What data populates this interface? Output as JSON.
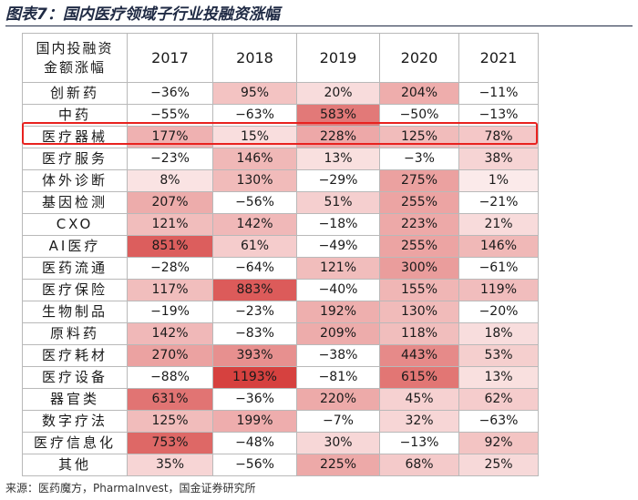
{
  "title": "图表7：国内医疗领域子行业投融资涨幅",
  "source": "来源：医药魔方，PharmaInvest，国金证券研究所",
  "colors": {
    "highlight_border": "#e8221f",
    "heat_high": "#d6413f",
    "heat_low": "#fbe9e9",
    "grid": "#b9b9b9"
  },
  "chart_data": {
    "type": "heatmap",
    "title": "图表7：国内医疗领域子行业投融资涨幅",
    "row_header": "国内投融资\n金额涨幅",
    "columns": [
      "2017",
      "2018",
      "2019",
      "2020",
      "2021"
    ],
    "rows": [
      {
        "label": "创新药",
        "values": [
          -36,
          95,
          20,
          204,
          -11
        ]
      },
      {
        "label": "中药",
        "values": [
          -55,
          -63,
          583,
          -50,
          -13
        ]
      },
      {
        "label": "医疗器械",
        "values": [
          177,
          15,
          228,
          125,
          78
        ],
        "highlighted": true
      },
      {
        "label": "医疗服务",
        "values": [
          -23,
          146,
          13,
          -3,
          38
        ]
      },
      {
        "label": "体外诊断",
        "values": [
          8,
          130,
          -29,
          275,
          1
        ]
      },
      {
        "label": "基因检测",
        "values": [
          207,
          -56,
          51,
          255,
          -21
        ]
      },
      {
        "label": "CXO",
        "values": [
          121,
          142,
          -18,
          223,
          21
        ]
      },
      {
        "label": "AI医疗",
        "values": [
          851,
          61,
          -49,
          255,
          146
        ]
      },
      {
        "label": "医药流通",
        "values": [
          -28,
          -64,
          121,
          300,
          -61
        ]
      },
      {
        "label": "医疗保险",
        "values": [
          117,
          883,
          -40,
          155,
          119
        ]
      },
      {
        "label": "生物制品",
        "values": [
          -19,
          -23,
          192,
          130,
          -20
        ]
      },
      {
        "label": "原料药",
        "values": [
          142,
          -83,
          209,
          118,
          18
        ]
      },
      {
        "label": "医疗耗材",
        "values": [
          270,
          393,
          -38,
          443,
          53
        ]
      },
      {
        "label": "医疗设备",
        "values": [
          -88,
          1193,
          -81,
          615,
          13
        ]
      },
      {
        "label": "器官类",
        "values": [
          631,
          -36,
          220,
          45,
          62
        ]
      },
      {
        "label": "数字疗法",
        "values": [
          125,
          199,
          -7,
          32,
          -63
        ]
      },
      {
        "label": "医疗信息化",
        "values": [
          753,
          -48,
          30,
          -13,
          92
        ]
      },
      {
        "label": "其他",
        "values": [
          35,
          -56,
          225,
          68,
          25
        ]
      }
    ],
    "value_suffix": "%"
  }
}
